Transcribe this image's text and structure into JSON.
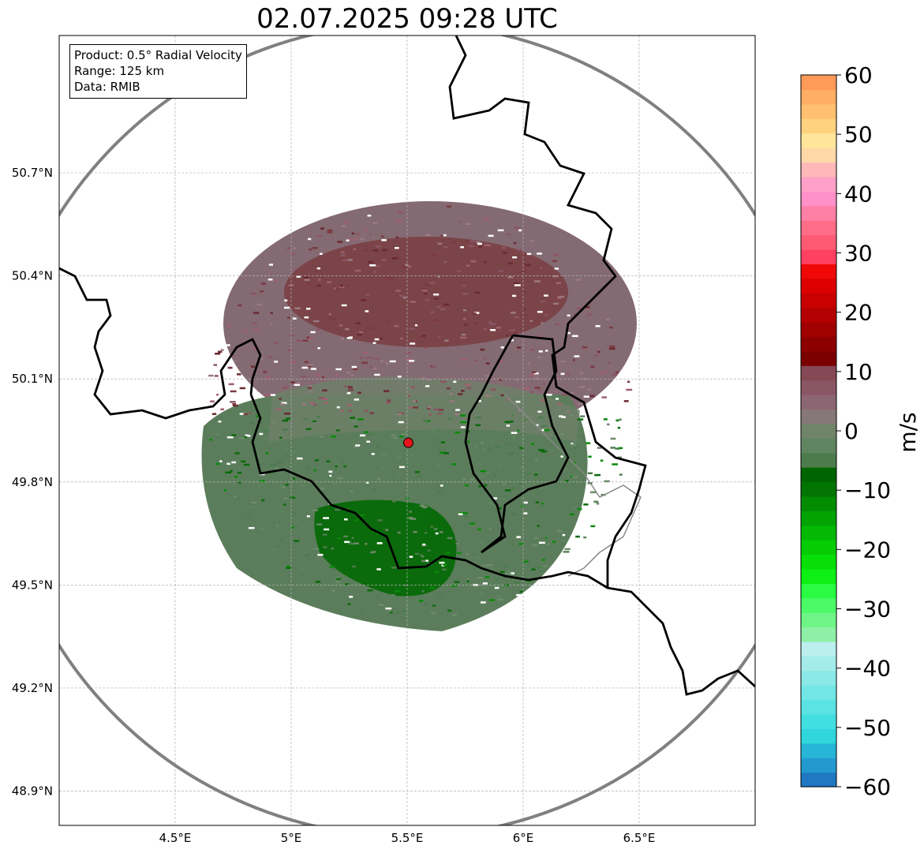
{
  "title": "02.07.2025 09:28 UTC",
  "info_box": {
    "product": "Product: 0.5° Radial Velocity",
    "range": "Range: 125 km",
    "data": "Data: RMIB"
  },
  "map": {
    "lon_range": [
      4.0,
      7.0
    ],
    "lat_range": [
      48.8,
      51.1
    ],
    "lon_ticks": [
      {
        "value": 4.5,
        "label": "4.5°E"
      },
      {
        "value": 5.0,
        "label": "5°E"
      },
      {
        "value": 5.5,
        "label": "5.5°E"
      },
      {
        "value": 6.0,
        "label": "6°E"
      },
      {
        "value": 6.5,
        "label": "6.5°E"
      }
    ],
    "lat_ticks": [
      {
        "value": 50.7,
        "label": "50.7°N"
      },
      {
        "value": 50.4,
        "label": "50.4°N"
      },
      {
        "value": 50.1,
        "label": "50.1°N"
      },
      {
        "value": 49.8,
        "label": "49.8°N"
      },
      {
        "value": 49.5,
        "label": "49.5°N"
      },
      {
        "value": 49.2,
        "label": "49.2°N"
      },
      {
        "value": 48.9,
        "label": "48.9°N"
      }
    ],
    "radar_site": {
      "lon": 5.505,
      "lat": 49.914,
      "color": "#e8141c"
    },
    "range_ring_color": "#808080",
    "border_color": "#000000",
    "grid_color": "#b0b0b0"
  },
  "colorbar": {
    "unit": "m/s",
    "min": -60,
    "max": 60,
    "tick_values": [
      60,
      50,
      40,
      30,
      20,
      10,
      0,
      -10,
      -20,
      -30,
      -40,
      -50,
      -60
    ],
    "tick_labels": [
      "60",
      "50",
      "40",
      "30",
      "20",
      "10",
      "0",
      "−10",
      "−20",
      "−30",
      "−40",
      "−50",
      "−60"
    ],
    "colors": [
      "#1f78c1",
      "#229ad0",
      "#27b6d8",
      "#2fd6dc",
      "#42dfe0",
      "#5ae3e2",
      "#72e6e4",
      "#8ae9e6",
      "#a3ece9",
      "#bbeeee",
      "#8ef0a6",
      "#6ef586",
      "#4cf966",
      "#2afc44",
      "#0eef14",
      "#08df08",
      "#05cc05",
      "#04b804",
      "#03a303",
      "#028c02",
      "#027402",
      "#006400",
      "#4c7c4c",
      "#5f8560",
      "#6f8468",
      "#867878",
      "#8c6672",
      "#8a5564",
      "#864854",
      "#7a0000",
      "#8c0000",
      "#a00000",
      "#b40000",
      "#c80000",
      "#dc0000",
      "#f00808",
      "#ff4060",
      "#ff5a74",
      "#ff6e86",
      "#ff80a6",
      "#ff90c8",
      "#ffa0c8",
      "#ffb8b8",
      "#ffd8a8",
      "#ffe69a",
      "#ffd280",
      "#ffc070",
      "#ffae64",
      "#ff9a58"
    ]
  }
}
